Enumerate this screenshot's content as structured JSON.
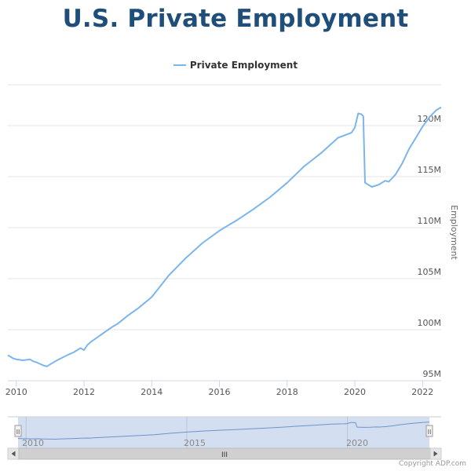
{
  "title": "U.S. Private Employment",
  "legend": {
    "label": "Private Employment"
  },
  "yaxis_title": "Employment",
  "credit": "Copyright ADP.com",
  "colors": {
    "series": "#7cb5ec",
    "title": "#1f4e7a",
    "navigator_fill": "#cdd8ee",
    "grid": "#e6e6e6"
  },
  "navigator": {
    "tick_labels": [
      "2010",
      "2015",
      "2020"
    ],
    "handle_glyph": "II",
    "scroll_left_icon": "triangle-left-icon",
    "scroll_right_icon": "triangle-right-icon",
    "scroll_grip_label": "III"
  },
  "chart_data": {
    "type": "line",
    "title": "U.S. Private Employment",
    "ylabel": "Employment",
    "xlabel": "",
    "xlim": [
      2009.75,
      2022.55
    ],
    "ylim": [
      95,
      124
    ],
    "x_ticks": [
      "2010",
      "2012",
      "2014",
      "2016",
      "2018",
      "2020",
      "2022"
    ],
    "y_ticks": [
      "95M",
      "100M",
      "105M",
      "110M",
      "115M",
      "120M"
    ],
    "grid": true,
    "legend_position": "top-center",
    "series": [
      {
        "name": "Private Employment",
        "x": [
          2009.75,
          2009.9,
          2010.0,
          2010.2,
          2010.4,
          2010.5,
          2010.6,
          2010.8,
          2010.9,
          2011.0,
          2011.2,
          2011.5,
          2011.7,
          2011.9,
          2012.0,
          2012.1,
          2012.2,
          2012.5,
          2012.8,
          2013.0,
          2013.3,
          2013.6,
          2014.0,
          2014.5,
          2015.0,
          2015.5,
          2016.0,
          2016.5,
          2017.0,
          2017.5,
          2018.0,
          2018.5,
          2019.0,
          2019.5,
          2019.9,
          2020.0,
          2020.1,
          2020.2,
          2020.25,
          2020.3,
          2020.5,
          2020.7,
          2020.9,
          2021.0,
          2021.2,
          2021.4,
          2021.6,
          2021.8,
          2022.0,
          2022.2,
          2022.4,
          2022.55
        ],
        "y": [
          97.5,
          97.2,
          97.1,
          97.0,
          97.1,
          96.9,
          96.8,
          96.5,
          96.4,
          96.6,
          97.0,
          97.5,
          97.8,
          98.2,
          98.0,
          98.5,
          98.8,
          99.5,
          100.2,
          100.6,
          101.4,
          102.1,
          103.2,
          105.3,
          107.0,
          108.5,
          109.7,
          110.7,
          111.8,
          113.0,
          114.4,
          116.0,
          117.3,
          118.8,
          119.3,
          119.8,
          121.2,
          121.1,
          120.9,
          114.4,
          114.0,
          114.2,
          114.6,
          114.5,
          115.2,
          116.3,
          117.7,
          118.8,
          119.9,
          120.8,
          121.5,
          121.8
        ]
      }
    ]
  }
}
